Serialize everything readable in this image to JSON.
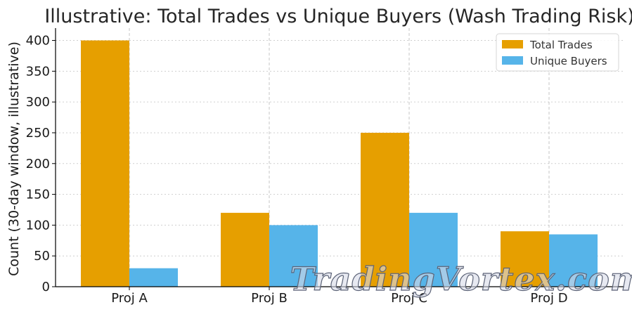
{
  "chart_data": {
    "type": "bar",
    "title": "Illustrative: Total Trades vs Unique Buyers (Wash Trading Risk)",
    "xlabel": "",
    "ylabel": "Count (30-day window, illustrative)",
    "categories": [
      "Proj A",
      "Proj B",
      "Proj C",
      "Proj D"
    ],
    "series": [
      {
        "name": "Total Trades",
        "values": [
          400,
          120,
          250,
          90
        ],
        "color": "#E69F00"
      },
      {
        "name": "Unique Buyers",
        "values": [
          30,
          100,
          120,
          85
        ],
        "color": "#56B4E9"
      }
    ],
    "ylim": [
      0,
      420
    ],
    "yticks": [
      0,
      50,
      100,
      150,
      200,
      250,
      300,
      350,
      400
    ],
    "grid": true,
    "legend_position": "top-right"
  },
  "watermark": {
    "text": "TradingVortex.com"
  }
}
